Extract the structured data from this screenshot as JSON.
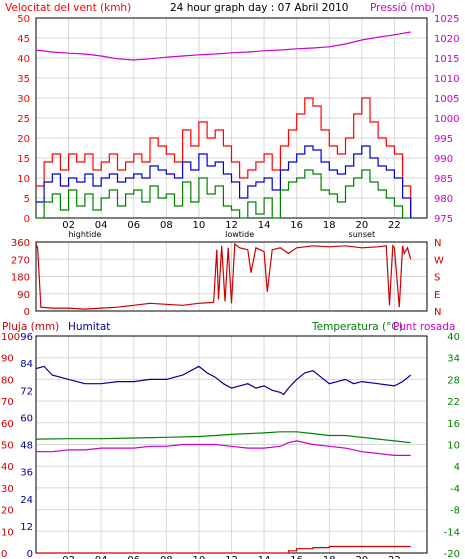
{
  "panel1": {
    "title": "24 hour graph day : 07 Abril 2010",
    "left_label": "Velocitat del vent (kmh)",
    "right_label": "Pressió (mb)"
  },
  "panel3": {
    "left_label_1": "Pluja (mm)",
    "left_label_2": "Humitat",
    "right_label_1": "Temperatura (°C)",
    "right_label_2": "Punt rosada"
  },
  "x_ticks": [
    "02",
    "04",
    "06",
    "08",
    "10",
    "12",
    "14",
    "16",
    "18",
    "20",
    "22"
  ],
  "x_annotations": [
    {
      "hour": 3,
      "text": "hightide"
    },
    {
      "hour": 12.5,
      "text": "lowtide"
    },
    {
      "hour": 20,
      "text": "sunset"
    }
  ],
  "colors": {
    "wind_max": "#ff0000",
    "wind_avg": "#0000cc",
    "wind_min": "#008000",
    "pressure": "#cc00cc",
    "direction": "#cc0000",
    "humidity": "#000099",
    "temperature": "#008000",
    "dewpoint": "#cc00cc",
    "rain": "#cc0000",
    "grid": "#d8d8d8",
    "frame": "#000000"
  },
  "chart_data": [
    {
      "type": "line",
      "name": "wind-pressure",
      "title": "24 hour graph day : 07 Abril 2010",
      "xlim": [
        0,
        24
      ],
      "ylabel": "Velocitat del vent (kmh)",
      "ylim": [
        0,
        50
      ],
      "yticks": [
        0,
        5,
        10,
        15,
        20,
        25,
        30,
        35,
        40,
        45,
        50
      ],
      "ylabel_right": "Pressió (mb)",
      "ylim_right": [
        975,
        1025
      ],
      "yticks_right": [
        975,
        980,
        985,
        990,
        995,
        1000,
        1005,
        1010,
        1015,
        1020,
        1025
      ],
      "series": [
        {
          "key": "wind_max",
          "axis": "left",
          "x": [
            0,
            0.5,
            1,
            1.5,
            2,
            2.5,
            3,
            3.5,
            4,
            4.5,
            5,
            5.5,
            6,
            6.5,
            7,
            7.5,
            8,
            8.5,
            9,
            9.5,
            10,
            10.5,
            11,
            11.5,
            12,
            12.5,
            13,
            13.5,
            14,
            14.5,
            15,
            15.5,
            16,
            16.5,
            17,
            17.5,
            18,
            18.5,
            19,
            19.5,
            20,
            20.5,
            21,
            21.5,
            22,
            22.5,
            23
          ],
          "values": [
            8,
            14,
            16,
            12,
            16,
            14,
            16,
            12,
            14,
            16,
            12,
            14,
            16,
            14,
            20,
            18,
            16,
            14,
            22,
            18,
            24,
            20,
            22,
            18,
            14,
            10,
            12,
            14,
            16,
            12,
            18,
            22,
            26,
            30,
            28,
            22,
            18,
            16,
            20,
            26,
            30,
            24,
            20,
            18,
            16,
            8,
            0
          ]
        },
        {
          "key": "wind_avg",
          "axis": "left",
          "x": [
            0,
            0.5,
            1,
            1.5,
            2,
            2.5,
            3,
            3.5,
            4,
            4.5,
            5,
            5.5,
            6,
            6.5,
            7,
            7.5,
            8,
            8.5,
            9,
            9.5,
            10,
            10.5,
            11,
            11.5,
            12,
            12.5,
            13,
            13.5,
            14,
            14.5,
            15,
            15.5,
            16,
            16.5,
            17,
            17.5,
            18,
            18.5,
            19,
            19.5,
            20,
            20.5,
            21,
            21.5,
            22,
            22.5,
            23
          ],
          "values": [
            4,
            9,
            11,
            8,
            10,
            9,
            11,
            8,
            10,
            11,
            9,
            10,
            11,
            10,
            13,
            12,
            11,
            10,
            14,
            12,
            16,
            13,
            14,
            11,
            9,
            5,
            8,
            9,
            10,
            7,
            12,
            14,
            16,
            18,
            17,
            14,
            12,
            11,
            13,
            16,
            18,
            15,
            13,
            12,
            10,
            5,
            0
          ]
        },
        {
          "key": "wind_min",
          "axis": "left",
          "x": [
            0,
            0.5,
            1,
            1.5,
            2,
            2.5,
            3,
            3.5,
            4,
            4.5,
            5,
            5.5,
            6,
            6.5,
            7,
            7.5,
            8,
            8.5,
            9,
            9.5,
            10,
            10.5,
            11,
            11.5,
            12,
            12.5,
            13,
            13.5,
            14,
            14.5,
            15,
            15.5,
            16,
            16.5,
            17,
            17.5,
            18,
            18.5,
            19,
            19.5,
            20,
            20.5,
            21,
            21.5,
            22,
            22.5,
            23
          ],
          "values": [
            0,
            4,
            6,
            2,
            7,
            3,
            6,
            2,
            5,
            7,
            3,
            6,
            7,
            4,
            8,
            5,
            6,
            3,
            9,
            4,
            10,
            6,
            8,
            3,
            2,
            0,
            4,
            1,
            5,
            0,
            7,
            9,
            10,
            12,
            11,
            7,
            6,
            4,
            8,
            10,
            12,
            9,
            7,
            5,
            3,
            0,
            0
          ]
        },
        {
          "key": "pressure",
          "axis": "right",
          "x": [
            0,
            1,
            2,
            3,
            4,
            5,
            6,
            7,
            8,
            9,
            10,
            11,
            12,
            13,
            14,
            15,
            16,
            17,
            18,
            19,
            20,
            21,
            22,
            23
          ],
          "values": [
            1017,
            1016.5,
            1016.2,
            1016,
            1015.5,
            1014.8,
            1014.5,
            1014.8,
            1015.2,
            1015.5,
            1015.8,
            1016,
            1016.3,
            1016.5,
            1016.8,
            1017,
            1017.3,
            1017.5,
            1017.8,
            1018.5,
            1019.5,
            1020.2,
            1020.8,
            1021.5
          ]
        }
      ]
    },
    {
      "type": "line",
      "name": "wind-direction",
      "xlim": [
        0,
        24
      ],
      "ylim": [
        0,
        360
      ],
      "yticks": [
        0,
        90,
        180,
        270,
        360
      ],
      "yticks_right": [
        "N",
        "E",
        "S",
        "W",
        "N"
      ],
      "series": [
        {
          "key": "direction",
          "axis": "left",
          "x": [
            0,
            0.1,
            0.3,
            1,
            2,
            3,
            4,
            5,
            6,
            7,
            8,
            9,
            10,
            10.9,
            11.1,
            11.2,
            11.4,
            11.6,
            11.8,
            12,
            12.2,
            12.5,
            13,
            13.2,
            13.5,
            14,
            14.2,
            14.5,
            15,
            15.5,
            16,
            17,
            18,
            19,
            20,
            21,
            21.5,
            21.7,
            21.9,
            22,
            22.3,
            22.5,
            22.6,
            22.8,
            23
          ],
          "values": [
            350,
            330,
            20,
            15,
            15,
            10,
            15,
            20,
            30,
            40,
            35,
            30,
            40,
            45,
            320,
            60,
            340,
            50,
            330,
            40,
            350,
            330,
            320,
            200,
            330,
            310,
            100,
            320,
            330,
            300,
            330,
            340,
            335,
            340,
            330,
            335,
            340,
            30,
            340,
            330,
            20,
            340,
            300,
            330,
            270
          ]
        }
      ]
    },
    {
      "type": "line",
      "name": "humidity-temperature-rain",
      "xlim": [
        0,
        24
      ],
      "ylabel": "Pluja (mm)",
      "ylim": [
        0,
        100
      ],
      "yticks": [
        0,
        10,
        20,
        30,
        40,
        50,
        60,
        70,
        80,
        90,
        100
      ],
      "ylabel_2": "Humitat",
      "ytick_labels_2": [
        "0",
        "12",
        "24",
        "36",
        "48",
        "60",
        "72",
        "84",
        "96"
      ],
      "ylabel_right": "Temperatura (°C)",
      "ylabel_right_2": "Punt rosada",
      "ylim_right": [
        -20,
        40
      ],
      "yticks_right": [
        -20,
        -14,
        -8,
        -4,
        4,
        10,
        16,
        22,
        28,
        34,
        40
      ],
      "series": [
        {
          "key": "humidity",
          "axis": "left",
          "x": [
            0,
            0.5,
            1,
            1.5,
            2,
            3,
            4,
            5,
            6,
            7,
            8,
            9,
            9.5,
            10,
            10.5,
            11,
            11.5,
            12,
            12.5,
            13,
            13.5,
            14,
            14.5,
            15,
            15.2,
            15.5,
            16,
            16.5,
            17,
            17.5,
            18,
            18.5,
            19,
            19.5,
            20,
            21,
            22,
            22.5,
            23
          ],
          "values": [
            85,
            86,
            82,
            81,
            80,
            78,
            78,
            79,
            79,
            80,
            80,
            82,
            84,
            86,
            83,
            81,
            78,
            76,
            77,
            78,
            76,
            77,
            75,
            74,
            73,
            76,
            80,
            83,
            84,
            81,
            78,
            79,
            80,
            78,
            79,
            78,
            77,
            79,
            82
          ]
        },
        {
          "key": "temperature",
          "axis": "right",
          "x": [
            0,
            2,
            4,
            6,
            8,
            10,
            11,
            12,
            13,
            14,
            15,
            16,
            17,
            18,
            19,
            20,
            21,
            22,
            23
          ],
          "values": [
            11.5,
            11.6,
            11.6,
            11.8,
            12,
            12.2,
            12.5,
            12.8,
            13,
            13.2,
            13.5,
            13.5,
            13,
            12.5,
            12.5,
            12,
            11.5,
            11,
            10.5
          ]
        },
        {
          "key": "dewpoint",
          "axis": "right",
          "x": [
            0,
            1,
            2,
            3,
            4,
            5,
            6,
            7,
            8,
            9,
            10,
            11,
            12,
            13,
            14,
            15,
            15.5,
            16,
            17,
            18,
            19,
            20,
            21,
            22,
            23
          ],
          "values": [
            8,
            8,
            8.5,
            8.5,
            9,
            9,
            9,
            9.5,
            9.5,
            10,
            10,
            10,
            9.5,
            9,
            9,
            9.5,
            10.5,
            11,
            10,
            9.5,
            9,
            8,
            7.5,
            7,
            7
          ]
        },
        {
          "key": "rain",
          "axis": "left",
          "x": [
            0,
            14,
            15,
            15.5,
            16,
            17,
            18,
            19,
            20,
            21,
            22,
            23
          ],
          "values": [
            0,
            0,
            0,
            1,
            2,
            2.5,
            3,
            3,
            3,
            3,
            3,
            3
          ]
        }
      ]
    }
  ]
}
